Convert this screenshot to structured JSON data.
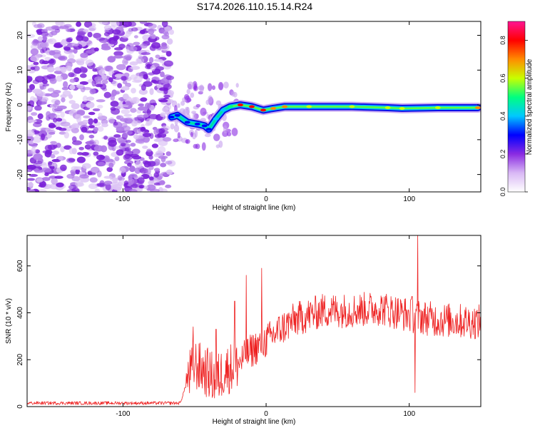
{
  "title": "S174.2026.110.15.14.R24",
  "chart_data": [
    {
      "type": "heatmap",
      "name": "spectrogram",
      "xlabel": "Height of straight line (km)",
      "ylabel": "Frequency (Hz)",
      "xlim": [
        -167,
        150
      ],
      "ylim": [
        -25,
        24
      ],
      "xticks": [
        -100,
        0,
        100
      ],
      "yticks": [
        -20,
        -10,
        0,
        10,
        20
      ],
      "noise_region_x": [
        -167,
        -66
      ],
      "transition_region_x": [
        -66,
        -20
      ],
      "ridge": [
        {
          "x": -66,
          "f": -3.5,
          "amp": 0.35
        },
        {
          "x": -62,
          "f": -3.0,
          "amp": 0.35
        },
        {
          "x": -55,
          "f": -5.0,
          "amp": 0.35
        },
        {
          "x": -48,
          "f": -5.5,
          "amp": 0.3
        },
        {
          "x": -43,
          "f": -6.0,
          "amp": 0.3
        },
        {
          "x": -40,
          "f": -7.0,
          "amp": 0.3
        },
        {
          "x": -35,
          "f": -4.0,
          "amp": 0.4
        },
        {
          "x": -30,
          "f": -1.5,
          "amp": 0.45
        },
        {
          "x": -25,
          "f": -0.5,
          "amp": 0.5
        },
        {
          "x": -18,
          "f": 0.0,
          "amp": 0.85
        },
        {
          "x": -10,
          "f": -0.5,
          "amp": 0.8
        },
        {
          "x": -2,
          "f": -1.5,
          "amp": 0.8
        },
        {
          "x": 5,
          "f": -1.0,
          "amp": 0.7
        },
        {
          "x": 13,
          "f": -0.5,
          "amp": 0.7
        },
        {
          "x": 30,
          "f": -0.5,
          "amp": 0.65
        },
        {
          "x": 60,
          "f": -0.5,
          "amp": 0.6
        },
        {
          "x": 85,
          "f": -0.8,
          "amp": 0.65
        },
        {
          "x": 95,
          "f": -1.0,
          "amp": 0.6
        },
        {
          "x": 120,
          "f": -0.8,
          "amp": 0.6
        },
        {
          "x": 148,
          "f": -0.8,
          "amp": 0.7
        }
      ]
    },
    {
      "type": "colorbar",
      "label": "Normalized spectral amplitude",
      "range": [
        0.0,
        0.9
      ],
      "ticks": [
        "0.0",
        "0.2",
        "0.4",
        "0.6",
        "0.8"
      ],
      "tick_values": [
        0.0,
        0.2,
        0.4,
        0.6,
        0.8
      ],
      "colormap": [
        "#ffffff",
        "#d9b8f5",
        "#8a2be2",
        "#0000ff",
        "#00c8ff",
        "#00ff80",
        "#c8ff00",
        "#ff8c00",
        "#ff0000",
        "#ff1493"
      ]
    },
    {
      "type": "line",
      "name": "snr",
      "xlabel": "Height of straight line (km)",
      "ylabel": "SNR (10 * v/v)",
      "xlim": [
        -167,
        150
      ],
      "ylim": [
        0,
        730
      ],
      "xticks": [
        -100,
        0,
        100
      ],
      "yticks": [
        0,
        200,
        400,
        600
      ],
      "color": "#ee2222",
      "trend": [
        {
          "x": -167,
          "y": 15
        },
        {
          "x": -60,
          "y": 15
        },
        {
          "x": -54,
          "y": 130
        },
        {
          "x": -50,
          "y": 180
        },
        {
          "x": -45,
          "y": 160
        },
        {
          "x": -40,
          "y": 140
        },
        {
          "x": -35,
          "y": 110
        },
        {
          "x": -30,
          "y": 150
        },
        {
          "x": -20,
          "y": 180
        },
        {
          "x": -10,
          "y": 240
        },
        {
          "x": 0,
          "y": 280
        },
        {
          "x": 10,
          "y": 330
        },
        {
          "x": 20,
          "y": 370
        },
        {
          "x": 40,
          "y": 410
        },
        {
          "x": 60,
          "y": 410
        },
        {
          "x": 80,
          "y": 420
        },
        {
          "x": 100,
          "y": 390
        },
        {
          "x": 120,
          "y": 370
        },
        {
          "x": 150,
          "y": 360
        }
      ],
      "spikes": [
        {
          "x": -51,
          "y": 340
        },
        {
          "x": -35,
          "y": 330
        },
        {
          "x": -22,
          "y": 450
        },
        {
          "x": -14,
          "y": 560
        },
        {
          "x": -3,
          "y": 590
        },
        {
          "x": 102,
          "y": 470
        },
        {
          "x": 106,
          "y": 730
        },
        {
          "x": 104,
          "y": 60
        }
      ]
    }
  ]
}
